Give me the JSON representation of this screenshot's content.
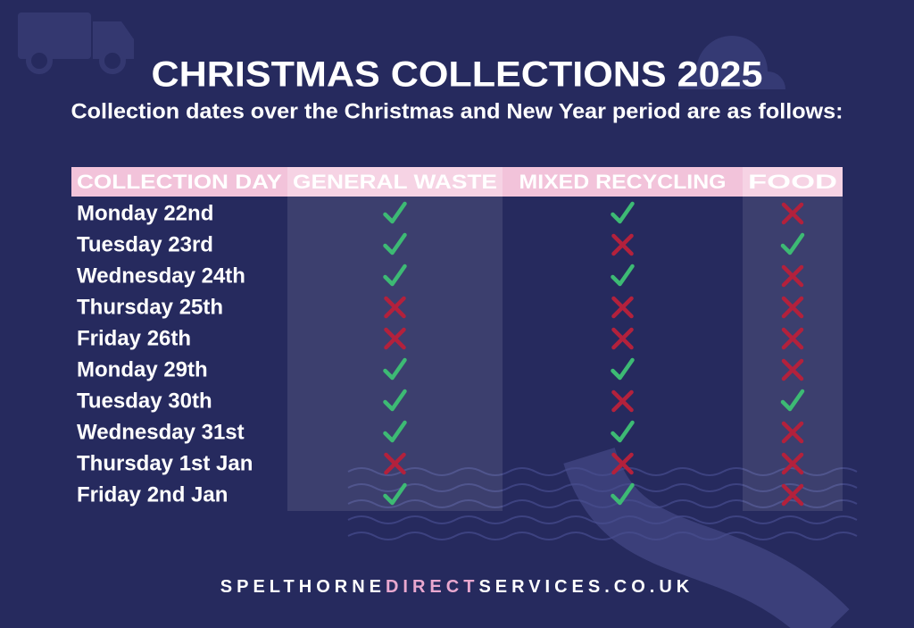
{
  "header": {
    "title": "CHRISTMAS COLLECTIONS 2025",
    "subtitle": "Collection dates over the Christmas and New Year period are as follows:"
  },
  "table": {
    "columns": [
      "COLLECTION DAY",
      "GENERAL WASTE",
      "MIXED RECYCLING",
      "FOOD"
    ],
    "rows": [
      [
        "Monday 22nd",
        true,
        true,
        false
      ],
      [
        "Tuesday 23rd",
        true,
        false,
        true
      ],
      [
        "Wednesday 24th",
        true,
        true,
        false
      ],
      [
        "Thursday 25th",
        false,
        false,
        false
      ],
      [
        "Friday 26th",
        false,
        false,
        false
      ],
      [
        "Monday 29th",
        true,
        true,
        false
      ],
      [
        "Tuesday 30th",
        true,
        false,
        true
      ],
      [
        "Wednesday 31st",
        true,
        true,
        false
      ],
      [
        "Thursday 1st Jan",
        false,
        false,
        false
      ],
      [
        "Friday 2nd Jan",
        true,
        true,
        false
      ]
    ]
  },
  "footer": {
    "parts": [
      "SPELTHORNE",
      "DIRECT",
      "SERVICES.CO.UK"
    ]
  }
}
